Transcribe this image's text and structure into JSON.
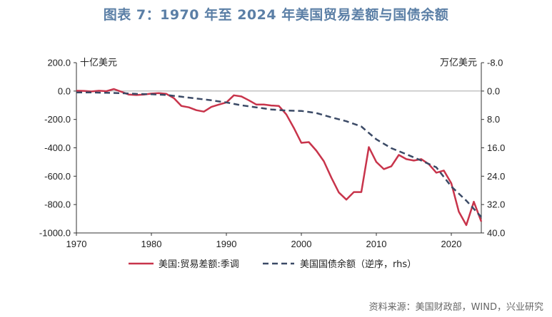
{
  "title": "图表 7：1970 年至 2024 年美国贸易差额与国债余额",
  "source": "资料来源：美国财政部，WIND，兴业研究",
  "chart_data": {
    "type": "line",
    "left_unit": "十亿美元",
    "right_unit": "万亿美元",
    "left_axis": {
      "min": -1000,
      "max": 200,
      "ticks": [
        "200.0",
        "0.0",
        "-200.0",
        "-400.0",
        "-600.0",
        "-800.0",
        "-1000.0"
      ]
    },
    "right_axis": {
      "min": -8,
      "max": 40,
      "inverted": true,
      "ticks": [
        "-8.0",
        "0.0",
        "8.0",
        "16.0",
        "24.0",
        "32.0",
        "40.0"
      ]
    },
    "x_axis": {
      "min": 1970,
      "max": 2024,
      "ticks": [
        "1970",
        "1980",
        "1990",
        "2000",
        "2010",
        "2020"
      ]
    },
    "series": [
      {
        "name": "美国:贸易差额:季调",
        "axis": "left",
        "color": "#c8344b",
        "style": "solid",
        "x": [
          1970,
          1971,
          1972,
          1973,
          1974,
          1975,
          1976,
          1977,
          1978,
          1979,
          1980,
          1981,
          1982,
          1983,
          1984,
          1985,
          1986,
          1987,
          1988,
          1989,
          1990,
          1991,
          1992,
          1993,
          1994,
          1995,
          1996,
          1997,
          1998,
          1999,
          2000,
          2001,
          2002,
          2003,
          2004,
          2005,
          2006,
          2007,
          2008,
          2009,
          2010,
          2011,
          2012,
          2013,
          2014,
          2015,
          2016,
          2017,
          2018,
          2019,
          2020,
          2021,
          2022,
          2023,
          2024
        ],
        "y": [
          2,
          1,
          -3,
          2,
          -1,
          14,
          -5,
          -25,
          -28,
          -25,
          -18,
          -15,
          -20,
          -50,
          -105,
          -115,
          -135,
          -145,
          -112,
          -95,
          -80,
          -30,
          -38,
          -65,
          -95,
          -95,
          -102,
          -105,
          -165,
          -260,
          -365,
          -360,
          -420,
          -495,
          -610,
          -715,
          -765,
          -712,
          -712,
          -395,
          -500,
          -550,
          -530,
          -450,
          -480,
          -490,
          -480,
          -515,
          -575,
          -560,
          -650,
          -850,
          -945,
          -780,
          -920
        ]
      },
      {
        "name": "美国国债余额（逆序，rhs）",
        "axis": "right",
        "color": "#3b4a66",
        "style": "dashed",
        "x": [
          1970,
          1972,
          1974,
          1976,
          1978,
          1980,
          1982,
          1984,
          1986,
          1988,
          1990,
          1992,
          1994,
          1996,
          1998,
          2000,
          2002,
          2004,
          2006,
          2008,
          2010,
          2012,
          2014,
          2016,
          2018,
          2020,
          2022,
          2024
        ],
        "y": [
          0.4,
          0.4,
          0.5,
          0.6,
          0.8,
          0.9,
          1.1,
          1.6,
          2.1,
          2.6,
          3.2,
          4.0,
          4.6,
          5.2,
          5.5,
          5.6,
          6.2,
          7.4,
          8.5,
          10.0,
          13.6,
          16.1,
          17.8,
          19.6,
          21.5,
          26.9,
          30.9,
          35.5
        ]
      }
    ]
  }
}
